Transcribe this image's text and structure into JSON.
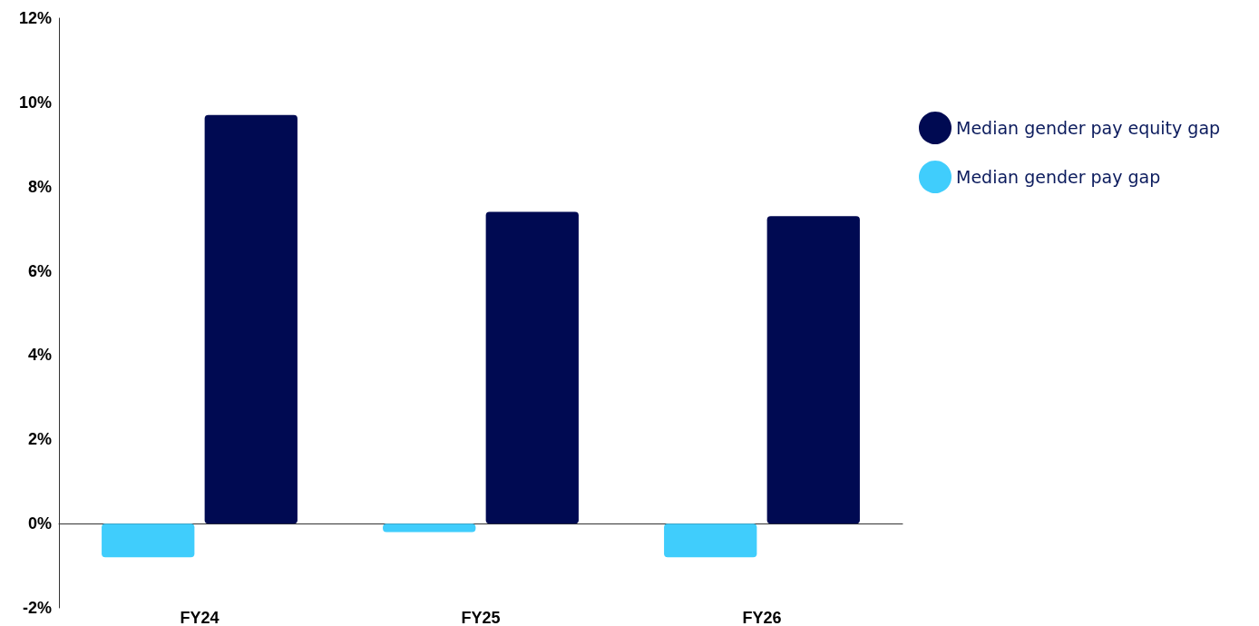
{
  "chart_data": {
    "type": "bar",
    "categories": [
      "FY24",
      "FY25",
      "FY26"
    ],
    "series": [
      {
        "name": "Median gender pay gap",
        "color": "#40cdfc",
        "values": [
          -0.8,
          -0.2,
          -0.8
        ]
      },
      {
        "name": "Median gender pay equity gap",
        "color": "#000a52",
        "values": [
          9.7,
          7.4,
          7.3
        ]
      }
    ],
    "ylim": [
      -2,
      12
    ],
    "yticks": [
      {
        "value": -2,
        "label": "-2%"
      },
      {
        "value": 0,
        "label": "0%"
      },
      {
        "value": 2,
        "label": "2%"
      },
      {
        "value": 4,
        "label": "4%"
      },
      {
        "value": 6,
        "label": "6%"
      },
      {
        "value": 8,
        "label": "8%"
      },
      {
        "value": 10,
        "label": "10%"
      },
      {
        "value": 12,
        "label": "12%"
      }
    ],
    "legend": "right"
  }
}
